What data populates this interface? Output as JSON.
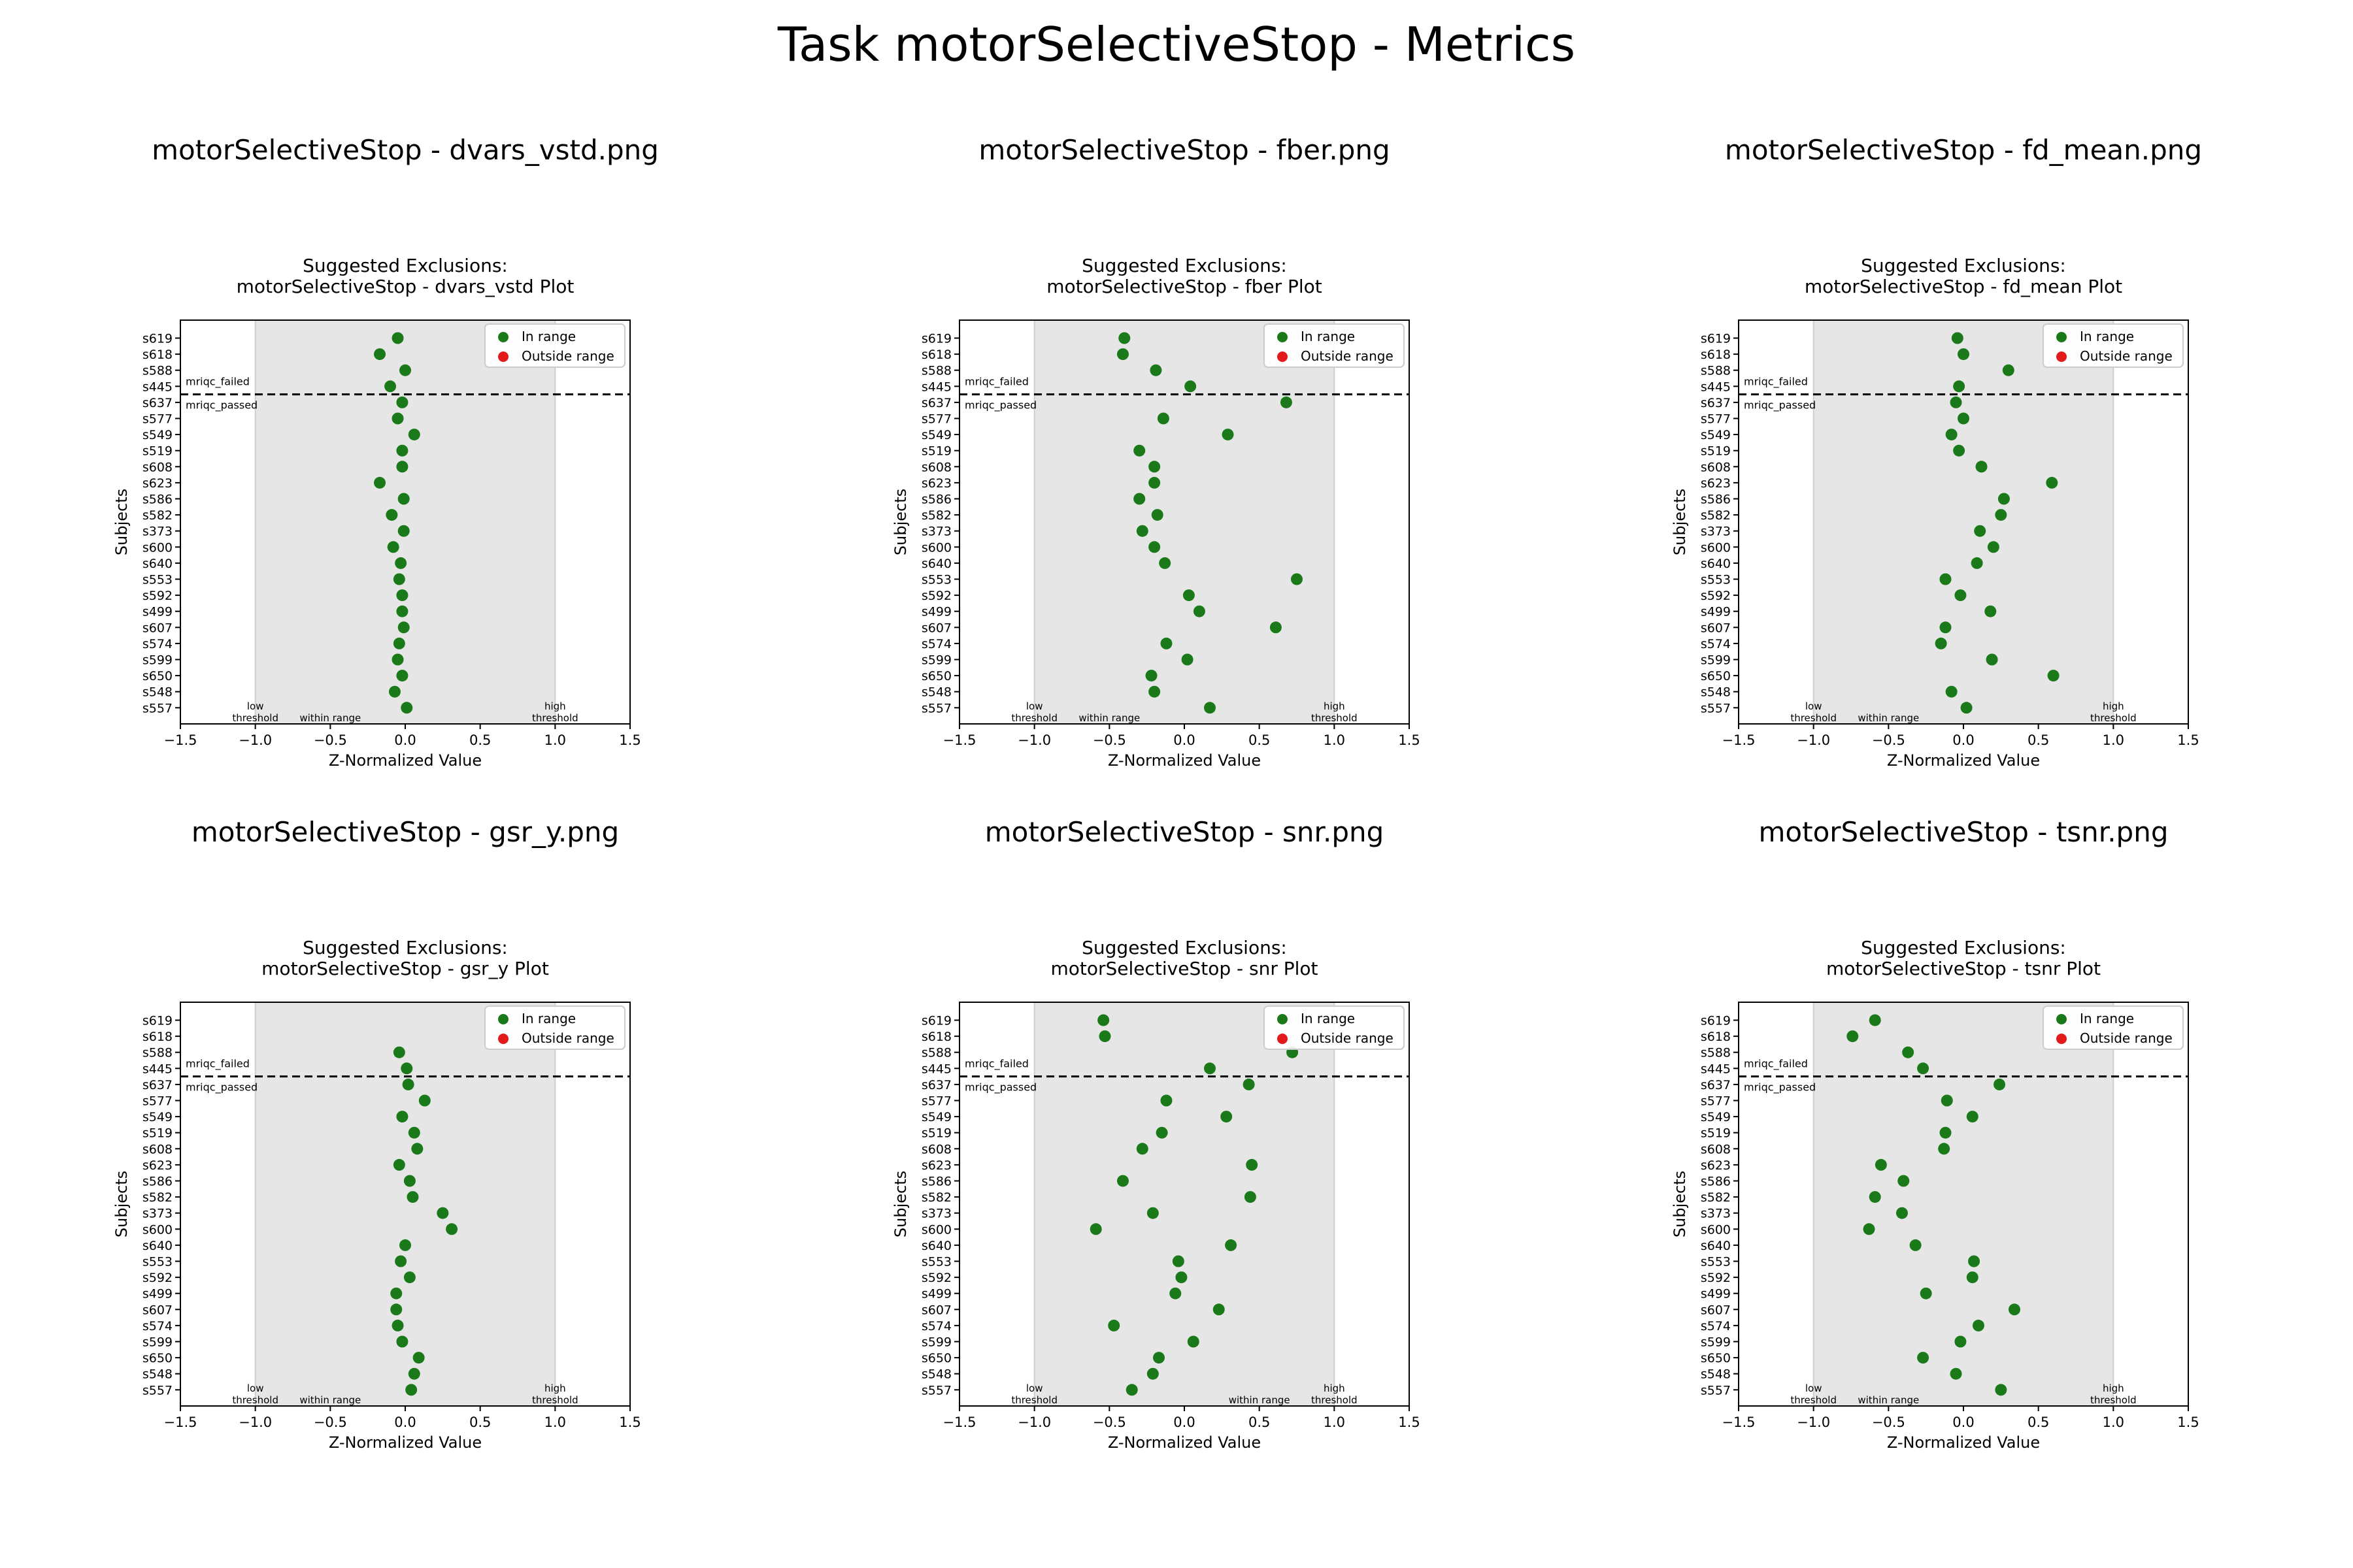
{
  "page": {
    "title": "Task motorSelectiveStop - Metrics"
  },
  "shared": {
    "xlabel": "Z-Normalized Value",
    "ylabel": "Subjects",
    "xlim": [
      -1.5,
      1.5
    ],
    "xticks": [
      -1.5,
      -1.0,
      -0.5,
      0.0,
      0.5,
      1.0,
      1.5
    ],
    "xtick_labels": [
      "−1.5",
      "−1.0",
      "−0.5",
      "0.0",
      "0.5",
      "1.0",
      "1.5"
    ],
    "subjects": [
      "s619",
      "s618",
      "s588",
      "s445",
      "s637",
      "s577",
      "s549",
      "s519",
      "s608",
      "s623",
      "s586",
      "s582",
      "s373",
      "s600",
      "s640",
      "s553",
      "s592",
      "s499",
      "s607",
      "s574",
      "s599",
      "s650",
      "s548",
      "s557"
    ],
    "separator_after_index": 3,
    "separator_labels": {
      "above": "mriqc_failed",
      "below": "mriqc_passed"
    },
    "band": {
      "low": -1.0,
      "high": 1.0
    },
    "band_labels": {
      "low": "low\nthreshold",
      "within": "within range",
      "high": "high\nthreshold"
    },
    "legend": {
      "in_range": "In range",
      "outside_range": "Outside range",
      "position": "top-right"
    },
    "colors": {
      "in_range": "#1a7a1a",
      "outside_range": "#e31a1c",
      "band": "#e6e6e6",
      "separator": "#000000"
    },
    "grid": false
  },
  "chart_data": [
    {
      "type": "scatter",
      "panel_title": "motorSelectiveStop - dvars_vstd.png",
      "title": "Suggested Exclusions:\nmotorSelectiveStop - dvars_vstd Plot",
      "within_label_side": "left",
      "values": [
        -0.05,
        -0.17,
        0.0,
        -0.1,
        -0.02,
        -0.05,
        0.06,
        -0.02,
        -0.02,
        -0.17,
        -0.01,
        -0.09,
        -0.01,
        -0.08,
        -0.03,
        -0.04,
        -0.02,
        -0.02,
        -0.01,
        -0.04,
        -0.05,
        -0.02,
        -0.07,
        0.01
      ]
    },
    {
      "type": "scatter",
      "panel_title": "motorSelectiveStop - fber.png",
      "title": "Suggested Exclusions:\nmotorSelectiveStop - fber Plot",
      "within_label_side": "left",
      "values": [
        -0.4,
        -0.41,
        -0.19,
        0.04,
        0.68,
        -0.14,
        0.29,
        -0.3,
        -0.2,
        -0.2,
        -0.3,
        -0.18,
        -0.28,
        -0.2,
        -0.13,
        0.75,
        0.03,
        0.1,
        0.61,
        -0.12,
        0.02,
        -0.22,
        -0.2,
        0.17
      ]
    },
    {
      "type": "scatter",
      "panel_title": "motorSelectiveStop - fd_mean.png",
      "title": "Suggested Exclusions:\nmotorSelectiveStop - fd_mean Plot",
      "within_label_side": "left",
      "values": [
        -0.04,
        0.0,
        0.3,
        -0.03,
        -0.05,
        0.0,
        -0.08,
        -0.03,
        0.12,
        0.59,
        0.27,
        0.25,
        0.11,
        0.2,
        0.09,
        -0.12,
        -0.02,
        0.18,
        -0.12,
        -0.15,
        0.19,
        0.6,
        -0.08,
        0.02
      ]
    },
    {
      "type": "scatter",
      "panel_title": "motorSelectiveStop - gsr_y.png",
      "title": "Suggested Exclusions:\nmotorSelectiveStop - gsr_y Plot",
      "within_label_side": "left",
      "values": [
        null,
        null,
        -0.04,
        0.01,
        0.02,
        0.13,
        -0.02,
        0.06,
        0.08,
        -0.04,
        0.03,
        0.05,
        0.25,
        0.31,
        0.0,
        -0.03,
        0.03,
        -0.06,
        -0.06,
        -0.05,
        -0.02,
        0.09,
        0.06,
        0.04
      ]
    },
    {
      "type": "scatter",
      "panel_title": "motorSelectiveStop - snr.png",
      "title": "Suggested Exclusions:\nmotorSelectiveStop - snr Plot",
      "within_label_side": "right",
      "values": [
        -0.54,
        -0.53,
        0.72,
        0.17,
        0.43,
        -0.12,
        0.28,
        -0.15,
        -0.28,
        0.45,
        -0.41,
        0.44,
        -0.21,
        -0.59,
        0.31,
        -0.04,
        -0.02,
        -0.06,
        0.23,
        -0.47,
        0.06,
        -0.17,
        -0.21,
        -0.35
      ]
    },
    {
      "type": "scatter",
      "panel_title": "motorSelectiveStop - tsnr.png",
      "title": "Suggested Exclusions:\nmotorSelectiveStop - tsnr Plot",
      "within_label_side": "left",
      "values": [
        -0.59,
        -0.74,
        -0.37,
        -0.27,
        0.24,
        -0.11,
        0.06,
        -0.12,
        -0.13,
        -0.55,
        -0.4,
        -0.59,
        -0.41,
        -0.63,
        -0.32,
        0.07,
        0.06,
        -0.25,
        0.34,
        0.1,
        -0.02,
        -0.27,
        -0.05,
        0.25
      ]
    }
  ]
}
